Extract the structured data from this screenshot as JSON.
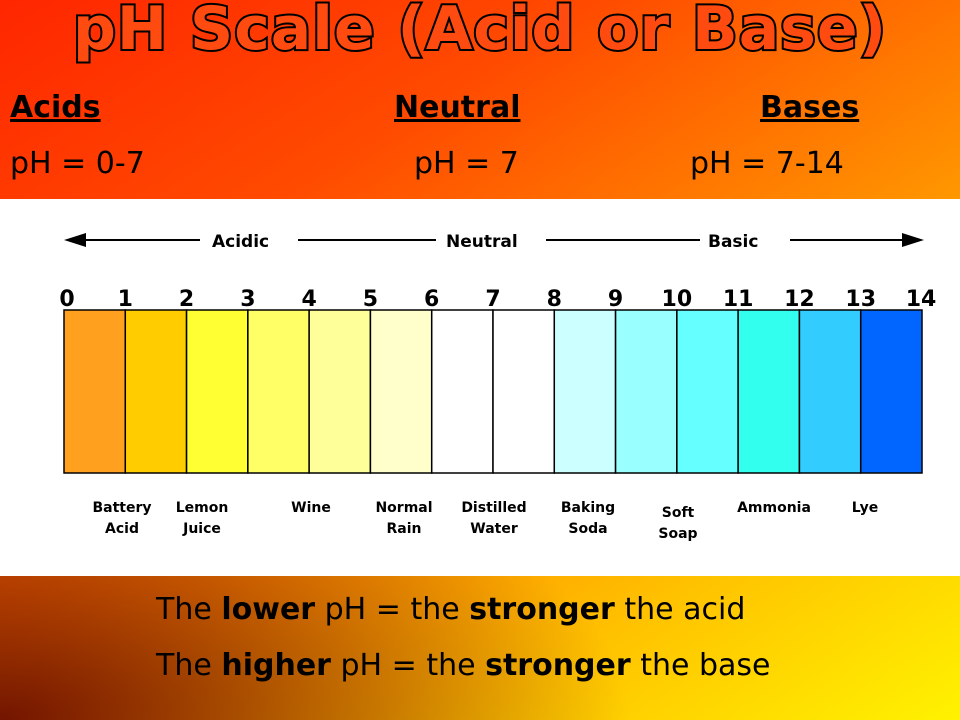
{
  "title": "pH Scale (Acid or Base)",
  "categories": [
    {
      "label": "Acids",
      "range": "pH = 0-7"
    },
    {
      "label": "Neutral",
      "range": "pH = 7"
    },
    {
      "label": "Bases",
      "range": "pH = 7-14"
    }
  ],
  "scale": {
    "header": {
      "acidic": "Acidic",
      "neutral": "Neutral",
      "basic": "Basic"
    },
    "ticks": [
      "0",
      "1",
      "2",
      "3",
      "4",
      "5",
      "6",
      "7",
      "8",
      "9",
      "10",
      "11",
      "12",
      "13",
      "14"
    ],
    "colors": [
      "#ffa11e",
      "#ffcc00",
      "#ffff33",
      "#ffff66",
      "#ffff99",
      "#ffffcc",
      "#ffffff",
      "#ffffff",
      "#ccffff",
      "#99ffff",
      "#66ffff",
      "#33ffee",
      "#33ccff",
      "#0066ff"
    ],
    "examples": [
      {
        "lines": [
          "Battery",
          "Acid"
        ]
      },
      {
        "lines": [
          "Lemon",
          "Juice"
        ]
      },
      {
        "lines": [
          "Wine"
        ]
      },
      {
        "lines": [
          "Normal",
          "Rain"
        ]
      },
      {
        "lines": [
          "Distilled",
          "Water"
        ]
      },
      {
        "lines": [
          "Baking",
          "Soda"
        ]
      },
      {
        "lines": [
          "Soft",
          "Soap"
        ]
      },
      {
        "lines": [
          "Ammonia"
        ]
      },
      {
        "lines": [
          "Lye"
        ]
      }
    ]
  },
  "statements": {
    "line1": {
      "a": "The ",
      "b": "lower",
      "c": " pH = the ",
      "d": "stronger",
      "e": " the acid"
    },
    "line2": {
      "a": "The ",
      "b": "higher",
      "c": " pH = the ",
      "d": "stronger",
      "e": " the base"
    }
  }
}
